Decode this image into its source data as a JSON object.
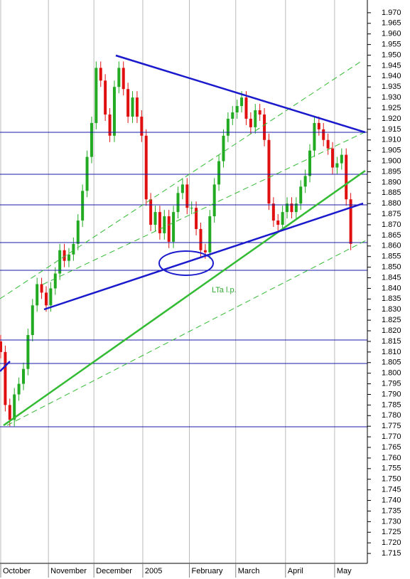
{
  "chart_data": {
    "type": "candlestick",
    "x": [
      0,
      2,
      4,
      6,
      8,
      10,
      12,
      14,
      16,
      18,
      20,
      22,
      24,
      26,
      28,
      30,
      32,
      34,
      36,
      38,
      40,
      42,
      44,
      46,
      48,
      50,
      52,
      54,
      56,
      58,
      60,
      62,
      64,
      66,
      68,
      70,
      72,
      74,
      76,
      78,
      80,
      82,
      84,
      86,
      88,
      90,
      92,
      94,
      96,
      98,
      100,
      102,
      104,
      106,
      108,
      110,
      112,
      114,
      116,
      118,
      120,
      122,
      124,
      126,
      128,
      130,
      132,
      134,
      136,
      138,
      140,
      142,
      144,
      146,
      148,
      150,
      152,
      154
    ],
    "open": [
      1.815,
      1.81,
      1.785,
      1.778,
      1.79,
      1.795,
      1.802,
      1.818,
      1.832,
      1.842,
      1.838,
      1.832,
      1.84,
      1.847,
      1.858,
      1.853,
      1.856,
      1.861,
      1.872,
      1.886,
      1.902,
      1.918,
      1.944,
      1.938,
      1.922,
      1.912,
      1.935,
      1.944,
      1.934,
      1.921,
      1.93,
      1.921,
      1.912,
      1.882,
      1.87,
      1.876,
      1.866,
      1.874,
      1.862,
      1.876,
      1.885,
      1.889,
      1.878,
      1.878,
      1.868,
      1.858,
      1.857,
      1.874,
      1.889,
      1.9,
      1.912,
      1.92,
      1.923,
      1.926,
      1.93,
      1.92,
      1.916,
      1.924,
      1.922,
      1.91,
      1.88,
      1.872,
      1.87,
      1.876,
      1.88,
      1.876,
      1.88,
      1.888,
      1.893,
      1.905,
      1.918,
      1.915,
      1.91,
      1.906,
      1.897,
      1.899,
      1.903,
      1.882
    ],
    "high": [
      1.818,
      1.813,
      1.788,
      1.793,
      1.798,
      1.805,
      1.821,
      1.835,
      1.845,
      1.845,
      1.841,
      1.843,
      1.85,
      1.861,
      1.861,
      1.859,
      1.864,
      1.875,
      1.889,
      1.905,
      1.921,
      1.947,
      1.947,
      1.941,
      1.925,
      1.938,
      1.947,
      1.947,
      1.937,
      1.933,
      1.933,
      1.924,
      1.915,
      1.885,
      1.879,
      1.879,
      1.877,
      1.877,
      1.879,
      1.888,
      1.892,
      1.892,
      1.881,
      1.881,
      1.871,
      1.861,
      1.877,
      1.892,
      1.903,
      1.915,
      1.923,
      1.926,
      1.929,
      1.933,
      1.933,
      1.923,
      1.927,
      1.927,
      1.925,
      1.913,
      1.883,
      1.875,
      1.879,
      1.883,
      1.883,
      1.883,
      1.891,
      1.896,
      1.908,
      1.921,
      1.921,
      1.918,
      1.913,
      1.909,
      1.902,
      1.906,
      1.906,
      1.885
    ],
    "low": [
      1.807,
      1.782,
      1.775,
      1.775,
      1.787,
      1.792,
      1.799,
      1.815,
      1.829,
      1.835,
      1.829,
      1.829,
      1.837,
      1.844,
      1.85,
      1.85,
      1.853,
      1.858,
      1.869,
      1.883,
      1.899,
      1.915,
      1.935,
      1.919,
      1.909,
      1.909,
      1.932,
      1.931,
      1.918,
      1.918,
      1.918,
      1.909,
      1.879,
      1.867,
      1.867,
      1.863,
      1.863,
      1.859,
      1.859,
      1.873,
      1.882,
      1.875,
      1.875,
      1.865,
      1.855,
      1.854,
      1.854,
      1.871,
      1.886,
      1.897,
      1.909,
      1.917,
      1.92,
      1.923,
      1.917,
      1.913,
      1.913,
      1.919,
      1.907,
      1.877,
      1.869,
      1.867,
      1.867,
      1.873,
      1.873,
      1.873,
      1.877,
      1.885,
      1.89,
      1.902,
      1.912,
      1.907,
      1.903,
      1.894,
      1.894,
      1.896,
      1.879,
      1.858
    ],
    "close": [
      1.81,
      1.785,
      1.778,
      1.79,
      1.795,
      1.802,
      1.818,
      1.832,
      1.842,
      1.838,
      1.832,
      1.84,
      1.847,
      1.858,
      1.853,
      1.856,
      1.861,
      1.872,
      1.886,
      1.902,
      1.918,
      1.944,
      1.938,
      1.922,
      1.912,
      1.935,
      1.944,
      1.934,
      1.921,
      1.93,
      1.921,
      1.912,
      1.882,
      1.87,
      1.876,
      1.866,
      1.874,
      1.862,
      1.876,
      1.885,
      1.889,
      1.878,
      1.878,
      1.868,
      1.858,
      1.857,
      1.874,
      1.889,
      1.9,
      1.912,
      1.92,
      1.923,
      1.926,
      1.93,
      1.92,
      1.916,
      1.924,
      1.922,
      1.91,
      1.88,
      1.872,
      1.87,
      1.876,
      1.88,
      1.876,
      1.88,
      1.888,
      1.893,
      1.905,
      1.918,
      1.915,
      1.91,
      1.906,
      1.897,
      1.899,
      1.903,
      1.882,
      1.861
    ],
    "up_color": "#22aa22",
    "down_color": "#e01010",
    "xlim": [
      0,
      161
    ],
    "xticks": [
      {
        "value": 0,
        "label": "October"
      },
      {
        "value": 21,
        "label": "November"
      },
      {
        "value": 41,
        "label": "December"
      },
      {
        "value": 62.5,
        "label": "2005"
      },
      {
        "value": 83,
        "label": "February"
      },
      {
        "value": 103.4,
        "label": "March"
      },
      {
        "value": 125.3,
        "label": "April"
      },
      {
        "value": 146.9,
        "label": "May"
      }
    ],
    "ylim": [
      1.711,
      1.976
    ],
    "yticks": [
      1.715,
      {
        "value": 1.72,
        "label": "1.720"
      },
      1.725,
      {
        "value": 1.73,
        "label": "1.730"
      },
      1.735,
      {
        "value": 1.74,
        "label": "1.740"
      },
      1.745,
      {
        "value": 1.75,
        "label": "1.750"
      },
      1.755,
      {
        "value": 1.76,
        "label": "1.760"
      },
      1.765,
      {
        "value": 1.77,
        "label": "1.770"
      },
      1.775,
      {
        "value": 1.78,
        "label": "1.780"
      },
      1.785,
      {
        "value": 1.79,
        "label": "1.790"
      },
      1.795,
      {
        "value": 1.8,
        "label": "1.800"
      },
      1.805,
      {
        "value": 1.81,
        "label": "1.810"
      },
      1.815,
      {
        "value": 1.82,
        "label": "1.820"
      },
      1.825,
      {
        "value": 1.83,
        "label": "1.830"
      },
      1.835,
      {
        "value": 1.84,
        "label": "1.840"
      },
      1.845,
      {
        "value": 1.85,
        "label": "1.850"
      },
      1.855,
      {
        "value": 1.86,
        "label": "1.860"
      },
      1.865,
      {
        "value": 1.87,
        "label": "1.870"
      },
      1.875,
      {
        "value": 1.88,
        "label": "1.880"
      },
      1.885,
      {
        "value": 1.89,
        "label": "1.890"
      },
      1.895,
      {
        "value": 1.9,
        "label": "1.900"
      },
      1.905,
      {
        "value": 1.91,
        "label": "1.910"
      },
      1.915,
      {
        "value": 1.92,
        "label": "1.920"
      },
      1.925,
      {
        "value": 1.93,
        "label": "1.930"
      },
      1.935,
      {
        "value": 1.94,
        "label": "1.940"
      },
      1.945,
      {
        "value": 1.95,
        "label": "1.950"
      },
      1.955,
      {
        "value": 1.96,
        "label": "1.960"
      },
      1.965,
      {
        "value": 1.97,
        "label": "1.970"
      }
    ],
    "annotation": "LTa l.p."
  }
}
